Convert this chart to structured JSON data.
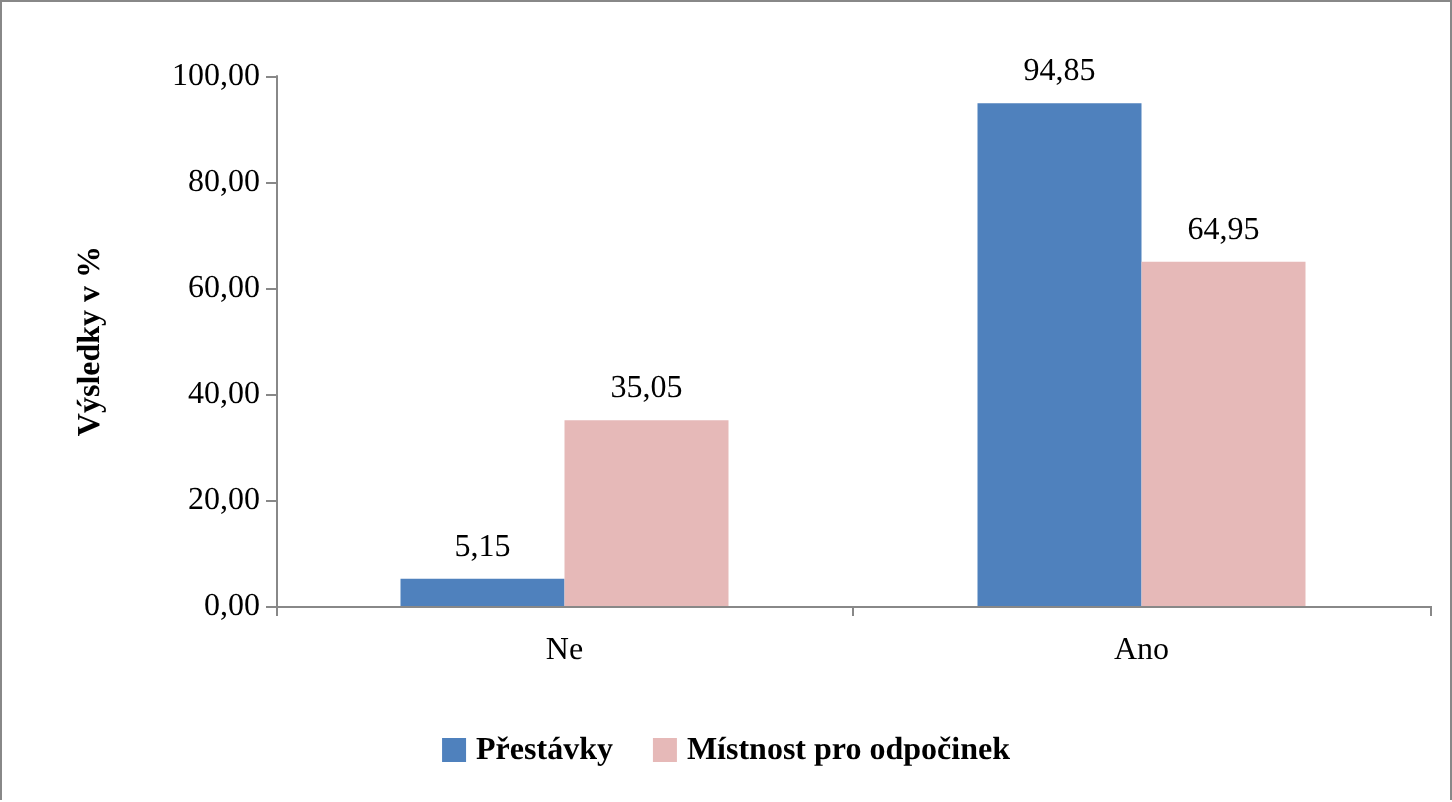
{
  "chart_data": {
    "type": "bar",
    "ylabel": "Výsledky v %",
    "categories": [
      "Ne",
      "Ano"
    ],
    "series": [
      {
        "name": "Přestávky",
        "color": "#4f81bd",
        "values": [
          5.15,
          94.85
        ],
        "value_labels": [
          "5,15",
          "94,85"
        ]
      },
      {
        "name": "Místnost pro odpočinek",
        "color": "#e6b9b8",
        "values": [
          35.05,
          64.95
        ],
        "value_labels": [
          "35,05",
          "64,95"
        ]
      }
    ],
    "ylim": [
      0,
      100
    ],
    "yticks": [
      {
        "value": 0,
        "label": "0,00"
      },
      {
        "value": 20,
        "label": "20,00"
      },
      {
        "value": 40,
        "label": "40,00"
      },
      {
        "value": 60,
        "label": "60,00"
      },
      {
        "value": 80,
        "label": "80,00"
      },
      {
        "value": 100,
        "label": "100,00"
      }
    ],
    "grid": false,
    "legend": "bottom"
  }
}
